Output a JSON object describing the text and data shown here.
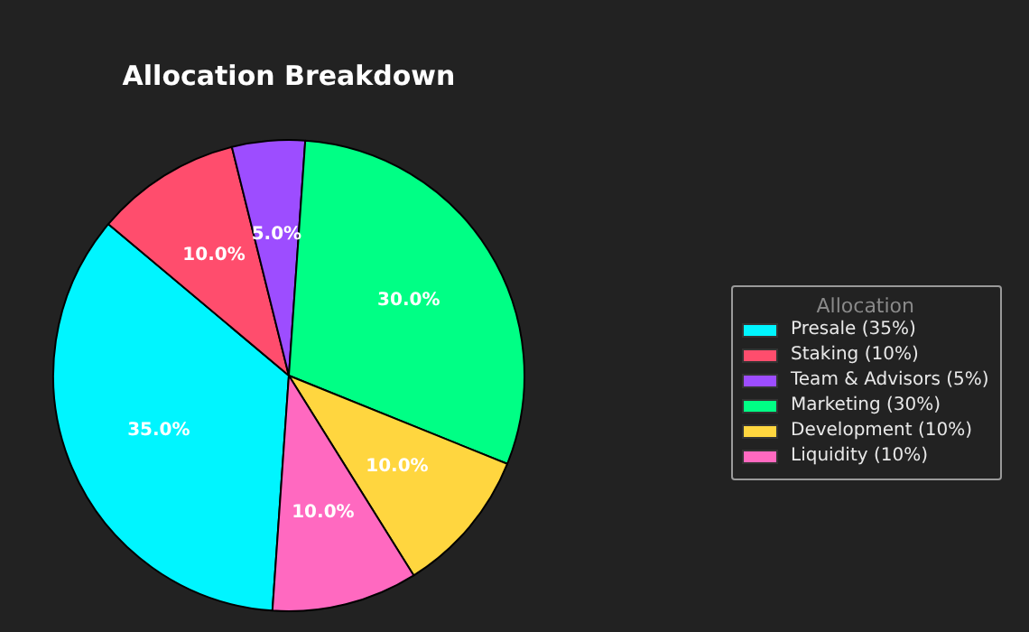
{
  "chart_data": {
    "type": "pie",
    "title": "Allocation Breakdown",
    "legend_title": "Allocation",
    "legend": "right",
    "categories": [
      "Presale (35%)",
      "Staking (10%)",
      "Team & Advisors (5%)",
      "Marketing (30%)",
      "Development (10%)",
      "Liquidity (10%)"
    ],
    "values": [
      35,
      10,
      5,
      30,
      10,
      10
    ],
    "value_labels": [
      "35.0%",
      "10.0%",
      "5.0%",
      "30.0%",
      "10.0%",
      "10.0%"
    ],
    "colors": [
      "#00f5ff",
      "#ff4d6d",
      "#9d4dff",
      "#00ff85",
      "#ffd63f",
      "#ff69c0"
    ]
  }
}
